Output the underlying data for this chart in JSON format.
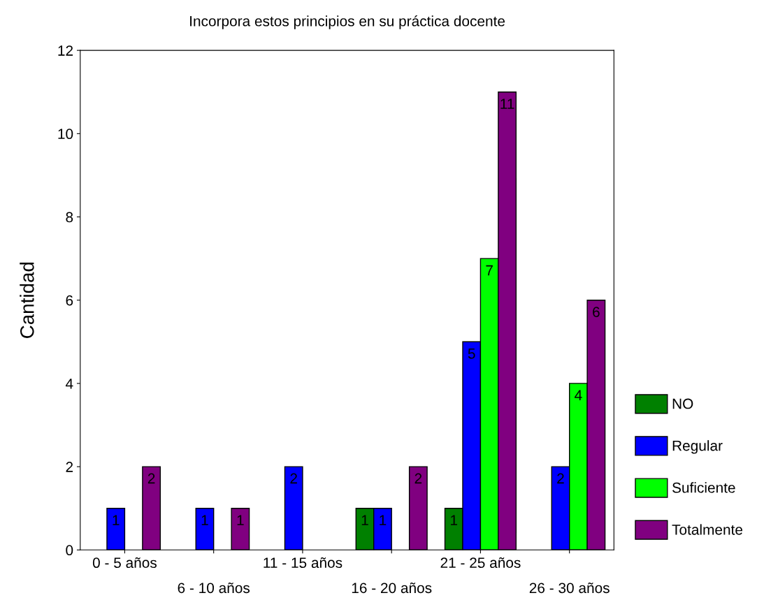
{
  "chart_data": {
    "type": "bar",
    "title": "Incorpora estos principios en su práctica docente",
    "ylabel": "Cantidad",
    "categories": [
      "0 - 5 años",
      "6 - 10 años",
      "11 - 15 años",
      "16 - 20 años",
      "21 - 25 años",
      "26 - 30 años"
    ],
    "series": [
      {
        "name": "NO",
        "color": "#008000",
        "values": [
          null,
          null,
          null,
          1,
          1,
          null
        ]
      },
      {
        "name": "Regular",
        "color": "#0000ff",
        "values": [
          1,
          1,
          2,
          1,
          5,
          2
        ]
      },
      {
        "name": "Suficiente",
        "color": "#00ff00",
        "values": [
          null,
          null,
          null,
          null,
          7,
          4
        ]
      },
      {
        "name": "Totalmente",
        "color": "#800080",
        "values": [
          2,
          1,
          null,
          2,
          11,
          6
        ]
      }
    ],
    "ylim": [
      0,
      12
    ],
    "yticks": [
      0,
      2,
      4,
      6,
      8,
      10,
      12
    ],
    "data_labels": true,
    "legend": "right",
    "grid": false
  }
}
